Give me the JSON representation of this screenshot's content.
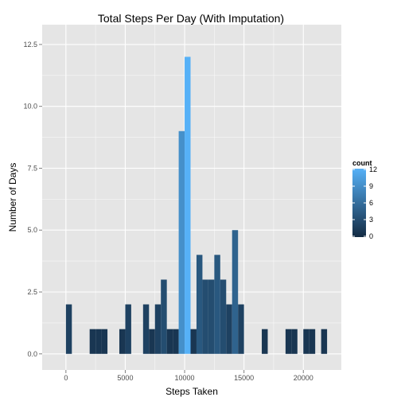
{
  "chart_data": {
    "type": "bar",
    "title": "Total Steps Per Day (With Imputation)",
    "xlabel": "Steps Taken",
    "ylabel": "Number of Days",
    "xlim": [
      -2000,
      23200
    ],
    "ylim": [
      -0.65,
      13.3
    ],
    "x_ticks": [
      0,
      5000,
      10000,
      15000,
      20000
    ],
    "x_tick_labels": [
      "0",
      "5000",
      "10000",
      "15000",
      "20000"
    ],
    "y_ticks": [
      0,
      2.5,
      5,
      7.5,
      10,
      12.5
    ],
    "y_tick_labels": [
      "0.0",
      "2.5",
      "5.0",
      "7.5",
      "10.0",
      "12.5"
    ],
    "bin_width": 500,
    "bins": [
      {
        "x": 250,
        "count": 2
      },
      {
        "x": 2250,
        "count": 1
      },
      {
        "x": 2750,
        "count": 1
      },
      {
        "x": 3250,
        "count": 1
      },
      {
        "x": 4750,
        "count": 1
      },
      {
        "x": 5250,
        "count": 2
      },
      {
        "x": 6750,
        "count": 2
      },
      {
        "x": 7250,
        "count": 1
      },
      {
        "x": 7750,
        "count": 2
      },
      {
        "x": 8250,
        "count": 3
      },
      {
        "x": 8750,
        "count": 1
      },
      {
        "x": 9250,
        "count": 1
      },
      {
        "x": 9750,
        "count": 9
      },
      {
        "x": 10250,
        "count": 12
      },
      {
        "x": 10750,
        "count": 1
      },
      {
        "x": 11250,
        "count": 4
      },
      {
        "x": 11750,
        "count": 3
      },
      {
        "x": 12250,
        "count": 3
      },
      {
        "x": 12750,
        "count": 4
      },
      {
        "x": 13250,
        "count": 3
      },
      {
        "x": 13750,
        "count": 2
      },
      {
        "x": 14250,
        "count": 5
      },
      {
        "x": 14750,
        "count": 2
      },
      {
        "x": 16750,
        "count": 1
      },
      {
        "x": 18750,
        "count": 1
      },
      {
        "x": 19250,
        "count": 1
      },
      {
        "x": 20250,
        "count": 1
      },
      {
        "x": 20750,
        "count": 1
      },
      {
        "x": 21750,
        "count": 1
      }
    ],
    "legend": {
      "title": "count",
      "ticks": [
        0,
        3,
        6,
        9,
        12
      ],
      "tick_labels": [
        "0",
        "3",
        "6",
        "9",
        "12"
      ],
      "low_color": "#132B43",
      "high_color": "#56B1F7",
      "placement": "right"
    },
    "panel_color": "#E5E5E5",
    "grid_color": "#FFFFFF"
  }
}
